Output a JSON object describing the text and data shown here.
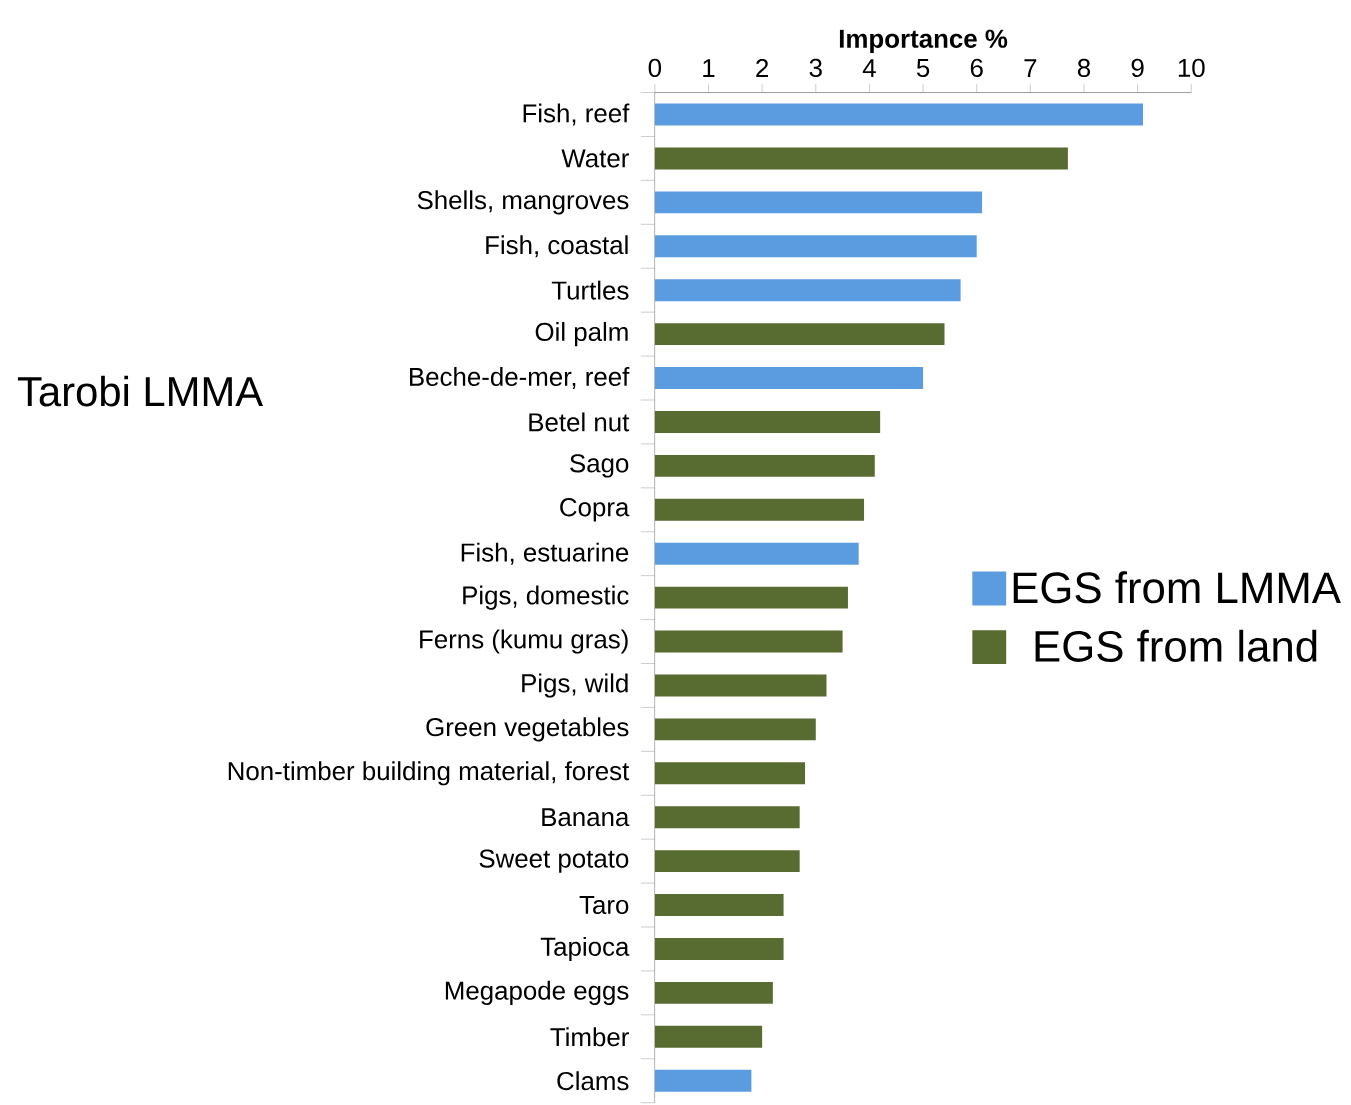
{
  "chart_data": {
    "type": "bar",
    "orientation": "horizontal",
    "title": "Tarobi LMMA",
    "xlabel": "Importance %",
    "categories": [
      "Fish, reef",
      "Water",
      "Shells, mangroves",
      "Fish, coastal",
      "Turtles",
      "Oil palm",
      "Beche-de-mer, reef",
      "Betel nut",
      "Sago",
      "Copra",
      "Fish, estuarine",
      "Pigs, domestic",
      "Ferns (kumu gras)",
      "Pigs, wild",
      "Green vegetables",
      "Non-timber building material, forest",
      "Banana",
      "Sweet potato",
      "Taro",
      "Tapioca",
      "Megapode eggs",
      "Timber",
      "Clams"
    ],
    "series": [
      {
        "name": "EGS from LMMA",
        "color": "#5b9be0",
        "values": [
          9.1,
          null,
          6.1,
          6.0,
          5.7,
          null,
          5.0,
          null,
          null,
          null,
          3.8,
          null,
          null,
          null,
          null,
          null,
          null,
          null,
          null,
          null,
          null,
          null,
          1.8
        ]
      },
      {
        "name": "EGS from land",
        "color": "#586b30",
        "values": [
          null,
          7.7,
          null,
          null,
          null,
          5.4,
          null,
          4.2,
          4.1,
          3.9,
          null,
          3.6,
          3.5,
          3.2,
          3.0,
          2.8,
          2.7,
          2.7,
          2.4,
          2.4,
          2.2,
          2.0,
          null
        ]
      }
    ],
    "xlim": [
      0,
      10
    ],
    "xticks": [
      0,
      1,
      2,
      3,
      4,
      5,
      6,
      7,
      8,
      9,
      10
    ],
    "legend": "right"
  }
}
